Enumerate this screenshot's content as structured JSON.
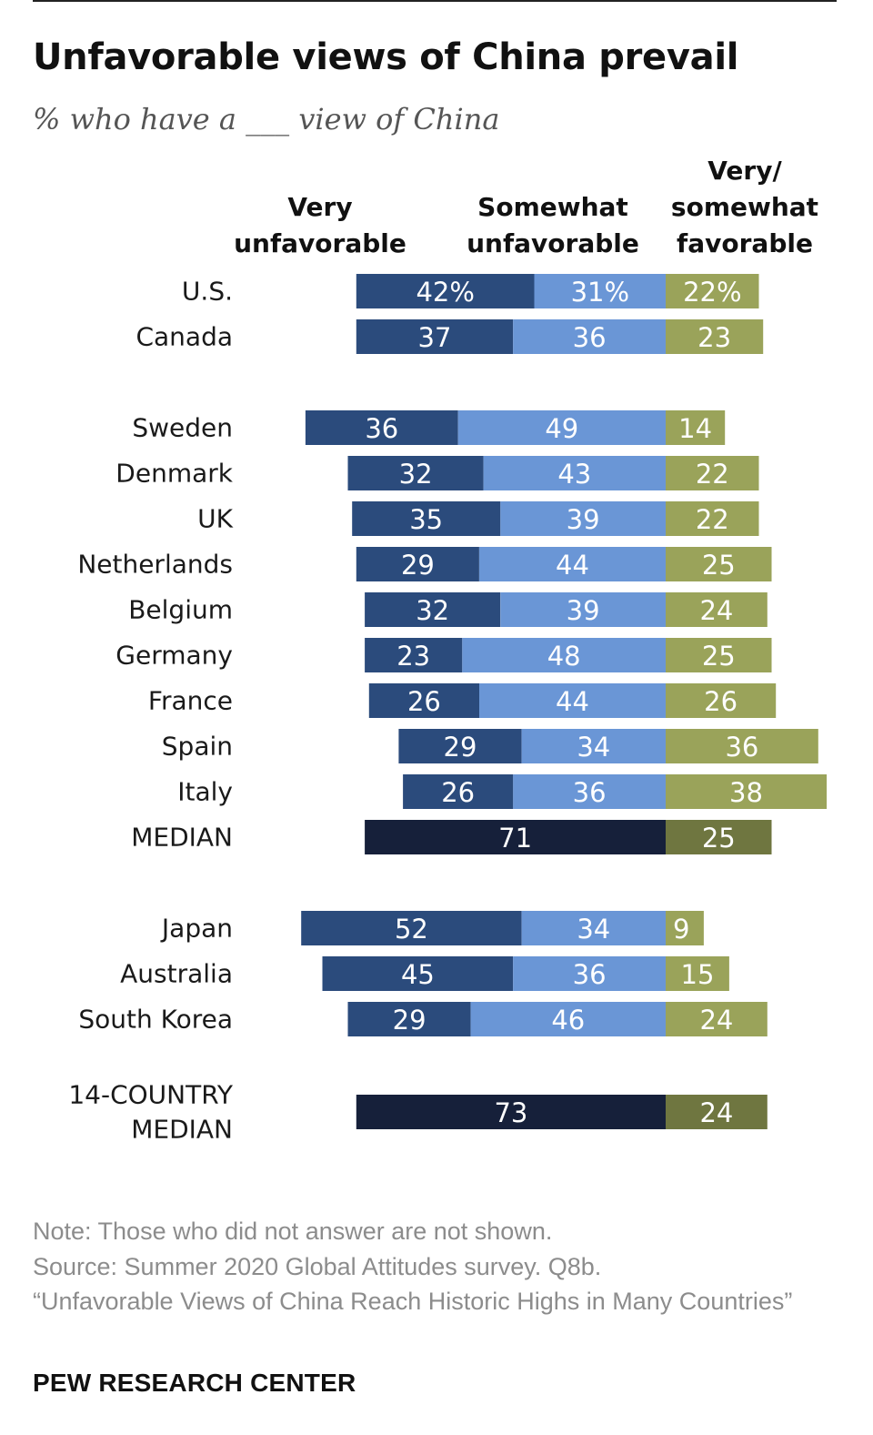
{
  "title": "Unfavorable views of China prevail",
  "subtitle": "% who have a ___ view of China",
  "column_headers": {
    "very_unfavorable": "Very\nunfavorable",
    "somewhat_unfavorable": "Somewhat\nunfavorable",
    "favorable": "Very/\nsomewhat\nfavorable"
  },
  "colors": {
    "very_unfavorable": "#2b4b7c",
    "somewhat_unfavorable": "#6a96d6",
    "favorable": "#9aa35a",
    "median_unfavorable": "#16203a",
    "median_favorable": "#6f7640"
  },
  "chart_data": {
    "type": "bar",
    "orientation": "horizontal-diverging",
    "series": [
      {
        "name": "Very unfavorable"
      },
      {
        "name": "Somewhat unfavorable"
      },
      {
        "name": "Very/somewhat favorable"
      }
    ],
    "rows": [
      {
        "label": "U.S.",
        "very": 42,
        "somewhat": 31,
        "favorable": 22,
        "percent_sign": true
      },
      {
        "label": "Canada",
        "very": 37,
        "somewhat": 36,
        "favorable": 23
      },
      {
        "label": "Sweden",
        "very": 36,
        "somewhat": 49,
        "favorable": 14
      },
      {
        "label": "Denmark",
        "very": 32,
        "somewhat": 43,
        "favorable": 22
      },
      {
        "label": "UK",
        "very": 35,
        "somewhat": 39,
        "favorable": 22
      },
      {
        "label": "Netherlands",
        "very": 29,
        "somewhat": 44,
        "favorable": 25
      },
      {
        "label": "Belgium",
        "very": 32,
        "somewhat": 39,
        "favorable": 24
      },
      {
        "label": "Germany",
        "very": 23,
        "somewhat": 48,
        "favorable": 25
      },
      {
        "label": "France",
        "very": 26,
        "somewhat": 44,
        "favorable": 26
      },
      {
        "label": "Spain",
        "very": 29,
        "somewhat": 34,
        "favorable": 36
      },
      {
        "label": "Italy",
        "very": 26,
        "somewhat": 36,
        "favorable": 38
      },
      {
        "label": "MEDIAN",
        "unfavorable": 71,
        "favorable": 25,
        "median": true
      },
      {
        "label": "Japan",
        "very": 52,
        "somewhat": 34,
        "favorable": 9
      },
      {
        "label": "Australia",
        "very": 45,
        "somewhat": 36,
        "favorable": 15
      },
      {
        "label": "South Korea",
        "very": 29,
        "somewhat": 46,
        "favorable": 24
      },
      {
        "label": "14-COUNTRY\nMEDIAN",
        "unfavorable": 73,
        "favorable": 24,
        "median": true
      }
    ]
  },
  "footer": {
    "note": "Note: Those who did not answer are not shown.",
    "source": "Source: Summer 2020 Global Attitudes survey. Q8b.",
    "report": "“Unfavorable Views of China Reach Historic Highs in Many Countries”"
  },
  "brand": "PEW RESEARCH CENTER"
}
